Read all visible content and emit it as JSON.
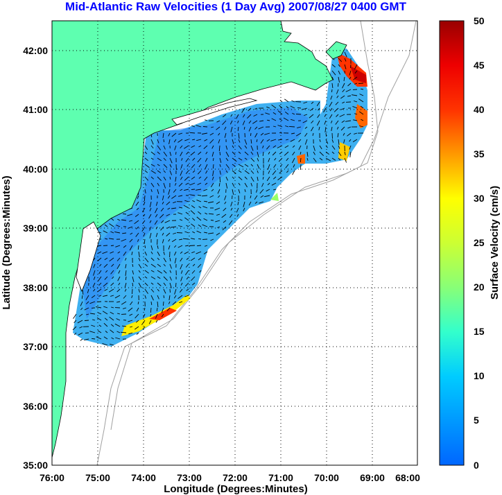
{
  "title": "Mid-Atlantic Raw Velocities (1 Day Avg) 2007/08/27 0400 GMT",
  "xlabel": "Longitude (Degrees:Minutes)",
  "ylabel": "Latitude (Degrees:Minutes)",
  "colorbar_label": "Surface Velocity (cm/s)",
  "colors": {
    "land": "#5effb0",
    "frame": "#000000",
    "contour": "#a0a0a0",
    "title": "#0000ff"
  },
  "chart_data": {
    "type": "heatmap",
    "x_ticks": [
      "76:00",
      "75:00",
      "74:00",
      "73:00",
      "72:00",
      "71:00",
      "70:00",
      "69:00",
      "68:00"
    ],
    "y_ticks": [
      "42:00",
      "41:00",
      "40:00",
      "39:00",
      "38:00",
      "37:00",
      "36:00",
      "35:00"
    ],
    "xlim": [
      -76,
      -68
    ],
    "ylim": [
      35,
      42.5
    ],
    "grid": true,
    "colorbar": {
      "ticks": [
        "50",
        "45",
        "40",
        "35",
        "30",
        "25",
        "20",
        "15",
        "10",
        "5",
        "0"
      ],
      "range": [
        0,
        50
      ],
      "colormap": "jet"
    }
  }
}
